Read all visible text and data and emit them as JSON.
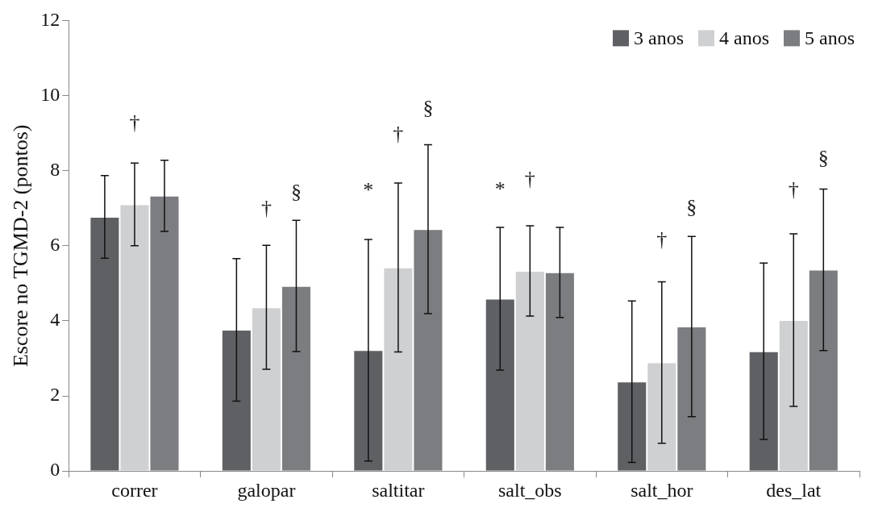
{
  "chart_data": {
    "type": "bar",
    "ylabel": "Escore no TGMD-2 (pontos)",
    "categories": [
      "correr",
      "galopar",
      "saltitar",
      "salt_obs",
      "salt_hor",
      "des_lat"
    ],
    "series": [
      {
        "name": "3 anos",
        "color": "#5f6064",
        "values": [
          6.77,
          3.76,
          3.22,
          4.59,
          2.38,
          3.19
        ],
        "errors": [
          1.1,
          1.9,
          2.95,
          1.9,
          2.15,
          2.35
        ]
      },
      {
        "name": "4 anos",
        "color": "#cfd0d2",
        "values": [
          7.1,
          4.36,
          5.42,
          5.33,
          2.89,
          4.02
        ],
        "errors": [
          1.1,
          1.65,
          2.25,
          1.2,
          2.15,
          2.3
        ]
      },
      {
        "name": "5 anos",
        "color": "#7c7d81",
        "values": [
          7.33,
          4.93,
          6.44,
          5.29,
          3.85,
          5.36
        ],
        "errors": [
          0.95,
          1.75,
          2.25,
          1.2,
          2.4,
          2.15
        ]
      }
    ],
    "annotations": [
      "†",
      "†",
      "§",
      "*",
      "†",
      "§",
      "*",
      "†",
      "†",
      "§",
      "†",
      "§"
    ],
    "ylim": [
      0,
      12
    ],
    "yticks": [
      0,
      2,
      4,
      6,
      8,
      10,
      12
    ],
    "grid": false,
    "legend": "top right"
  }
}
